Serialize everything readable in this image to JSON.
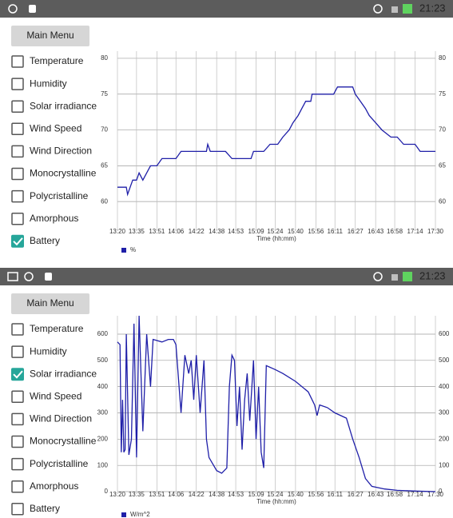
{
  "screens": [
    {
      "status_time": "21:23",
      "menu_button": "Main Menu",
      "options": [
        {
          "label": "Temperature",
          "checked": false
        },
        {
          "label": "Humidity",
          "checked": false
        },
        {
          "label": "Solar irradiance",
          "checked": false
        },
        {
          "label": "Wind Speed",
          "checked": false
        },
        {
          "label": "Wind Direction",
          "checked": false
        },
        {
          "label": "Monocrystalline",
          "checked": false
        },
        {
          "label": "Polycristalline",
          "checked": false
        },
        {
          "label": "Amorphous",
          "checked": false
        },
        {
          "label": "Battery",
          "checked": true
        }
      ]
    },
    {
      "status_time": "21:23",
      "menu_button": "Main Menu",
      "options": [
        {
          "label": "Temperature",
          "checked": false
        },
        {
          "label": "Humidity",
          "checked": false
        },
        {
          "label": "Solar irradiance",
          "checked": true
        },
        {
          "label": "Wind Speed",
          "checked": false
        },
        {
          "label": "Wind Direction",
          "checked": false
        },
        {
          "label": "Monocrystalline",
          "checked": false
        },
        {
          "label": "Polycristalline",
          "checked": false
        },
        {
          "label": "Amorphous",
          "checked": false
        },
        {
          "label": "Battery",
          "checked": false
        }
      ]
    }
  ],
  "chart_data": [
    {
      "type": "line",
      "x_label": "Time (hh:mm)",
      "x": [
        "13:20",
        "13:27",
        "13:28",
        "13:30",
        "13:32",
        "13:35",
        "13:37",
        "13:40",
        "13:43",
        "13:46",
        "13:51",
        "13:55",
        "14:06",
        "14:10",
        "14:22",
        "14:30",
        "14:31",
        "14:33",
        "14:45",
        "14:50",
        "14:53",
        "15:05",
        "15:07",
        "15:15",
        "15:20",
        "15:26",
        "15:30",
        "15:35",
        "15:38",
        "15:42",
        "15:45",
        "15:48",
        "15:52",
        "15:53",
        "15:56",
        "16:10",
        "16:13",
        "16:25",
        "16:27",
        "16:31",
        "16:35",
        "16:38",
        "16:43",
        "16:48",
        "16:55",
        "17:00",
        "17:05",
        "17:14",
        "17:18",
        "17:30"
      ],
      "series": [
        {
          "name": "%",
          "color": "#1f1fa8",
          "values": [
            62,
            62,
            61,
            62,
            63,
            63,
            64,
            63,
            64,
            65,
            65,
            66,
            66,
            67,
            67,
            67,
            68,
            67,
            67,
            66,
            66,
            66,
            67,
            67,
            68,
            68,
            69,
            70,
            71,
            72,
            73,
            74,
            74,
            75,
            75,
            75,
            76,
            76,
            75,
            74,
            73,
            72,
            71,
            70,
            69,
            69,
            68,
            68,
            67,
            67
          ]
        }
      ],
      "xlim": [
        "13:20",
        "17:30"
      ],
      "xticks": [
        "13:20",
        "13:35",
        "13:51",
        "14:06",
        "14:22",
        "14:38",
        "14:53",
        "15:09",
        "15:24",
        "15:40",
        "15:56",
        "16:11",
        "16:27",
        "16:43",
        "16:58",
        "17:14",
        "17:30"
      ],
      "ylim": [
        56,
        81
      ],
      "yticks": [
        60,
        65,
        70,
        75,
        80
      ],
      "grid": true
    },
    {
      "type": "line",
      "x_label": "Time (hh:mm)",
      "x": [
        "13:20",
        "13:22",
        "13:23",
        "13:24",
        "13:25",
        "13:26",
        "13:27",
        "13:29",
        "13:31",
        "13:33",
        "13:35",
        "13:37",
        "13:40",
        "13:43",
        "13:46",
        "13:48",
        "13:55",
        "14:00",
        "14:04",
        "14:06",
        "14:10",
        "14:13",
        "14:16",
        "14:18",
        "14:20",
        "14:22",
        "14:25",
        "14:28",
        "14:30",
        "14:32",
        "14:38",
        "14:42",
        "14:46",
        "14:48",
        "14:50",
        "14:52",
        "14:54",
        "14:56",
        "14:58",
        "15:00",
        "15:02",
        "15:04",
        "15:07",
        "15:09",
        "15:11",
        "15:13",
        "15:15",
        "15:17",
        "15:24",
        "15:30",
        "15:40",
        "15:50",
        "15:55",
        "15:57",
        "15:59",
        "16:05",
        "16:11",
        "16:20",
        "16:25",
        "16:30",
        "16:35",
        "16:40",
        "16:50",
        "17:00",
        "17:14",
        "17:30"
      ],
      "series": [
        {
          "name": "W/m^2",
          "color": "#1f1fa8",
          "values": [
            570,
            560,
            150,
            350,
            150,
            160,
            600,
            140,
            200,
            640,
            130,
            670,
            230,
            600,
            400,
            580,
            570,
            580,
            580,
            560,
            300,
            520,
            450,
            500,
            350,
            520,
            300,
            500,
            200,
            130,
            80,
            70,
            90,
            400,
            520,
            500,
            250,
            400,
            160,
            350,
            450,
            270,
            500,
            200,
            400,
            150,
            90,
            480,
            465,
            450,
            420,
            380,
            330,
            290,
            330,
            320,
            300,
            280,
            200,
            130,
            50,
            20,
            10,
            5,
            2,
            0
          ]
        }
      ],
      "xlim": [
        "13:20",
        "17:30"
      ],
      "xticks": [
        "13:20",
        "13:35",
        "13:51",
        "14:06",
        "14:22",
        "14:38",
        "14:53",
        "15:09",
        "15:24",
        "15:40",
        "15:56",
        "16:11",
        "16:27",
        "16:43",
        "16:58",
        "17:14",
        "17:30"
      ],
      "ylim": [
        0,
        670
      ],
      "yticks": [
        0,
        100,
        200,
        300,
        400,
        500,
        600
      ],
      "grid": true
    }
  ]
}
